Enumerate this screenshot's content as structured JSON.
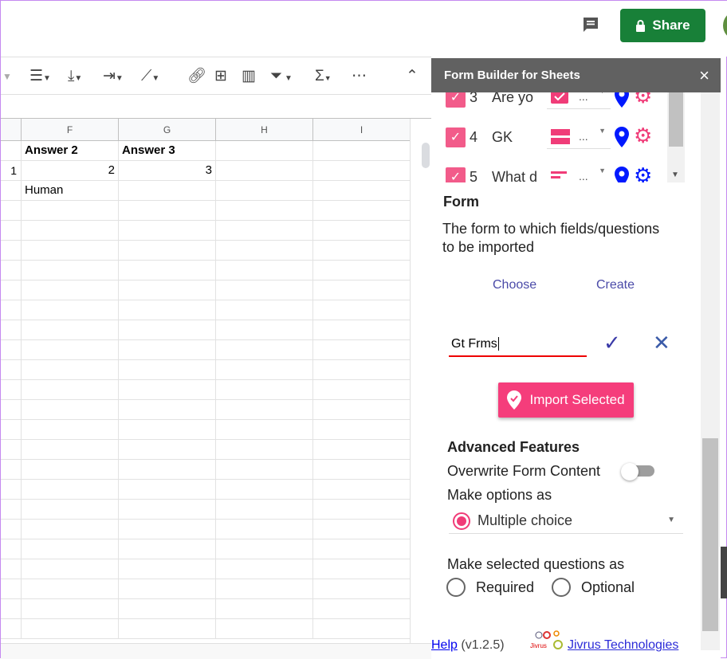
{
  "topbar": {
    "share_label": "Share",
    "comment_icon": "comment-icon",
    "lock_icon": "lock-icon"
  },
  "toolbar": {
    "icons": [
      "align-left-icon",
      "valign-bottom-icon",
      "text-wrap-icon",
      "text-rotate-icon",
      "link-icon",
      "insert-comment-icon",
      "insert-chart-icon",
      "filter-icon",
      "functions-icon",
      "more-icon",
      "collapse-icon"
    ]
  },
  "sheet": {
    "columns": [
      "F",
      "G",
      "H",
      "I"
    ],
    "rows": [
      {
        "row_num": "",
        "cells": [
          "Answer 2",
          "Answer 3",
          "",
          ""
        ],
        "bold": true
      },
      {
        "row_num": "1",
        "cells": [
          "2",
          "3",
          "",
          ""
        ]
      },
      {
        "row_num": "",
        "cells": [
          "Human",
          "",
          "",
          ""
        ]
      }
    ]
  },
  "panel": {
    "title": "Form Builder for Sheets",
    "close": "×",
    "questions": [
      {
        "num": "3",
        "text": "Are yo",
        "type_icon": "checkbox-type-icon",
        "sel": "..."
      },
      {
        "num": "4",
        "text": "GK",
        "type_icon": "grid-type-icon",
        "sel": "..."
      },
      {
        "num": "5",
        "text": "What d",
        "type_icon": "short-text-type-icon",
        "sel": "..."
      }
    ],
    "form_heading": "Form",
    "form_desc": "The form to which fields/questions to be imported",
    "choose": "Choose",
    "create": "Create",
    "form_name_value": "Gt Frms",
    "import_label": "Import Selected",
    "advanced_heading": "Advanced Features",
    "overwrite_label": "Overwrite Form Content",
    "overwrite_on": false,
    "options_label": "Make options as",
    "options_value": "Multiple choice",
    "questions_as_label": "Make selected questions as",
    "required_label": "Required",
    "optional_label": "Optional",
    "help_label": "Help",
    "version": "(v1.2.5)",
    "company": "Jivrus Technologies",
    "logo_text": "Jivrus",
    "accent": "#f03c78"
  }
}
